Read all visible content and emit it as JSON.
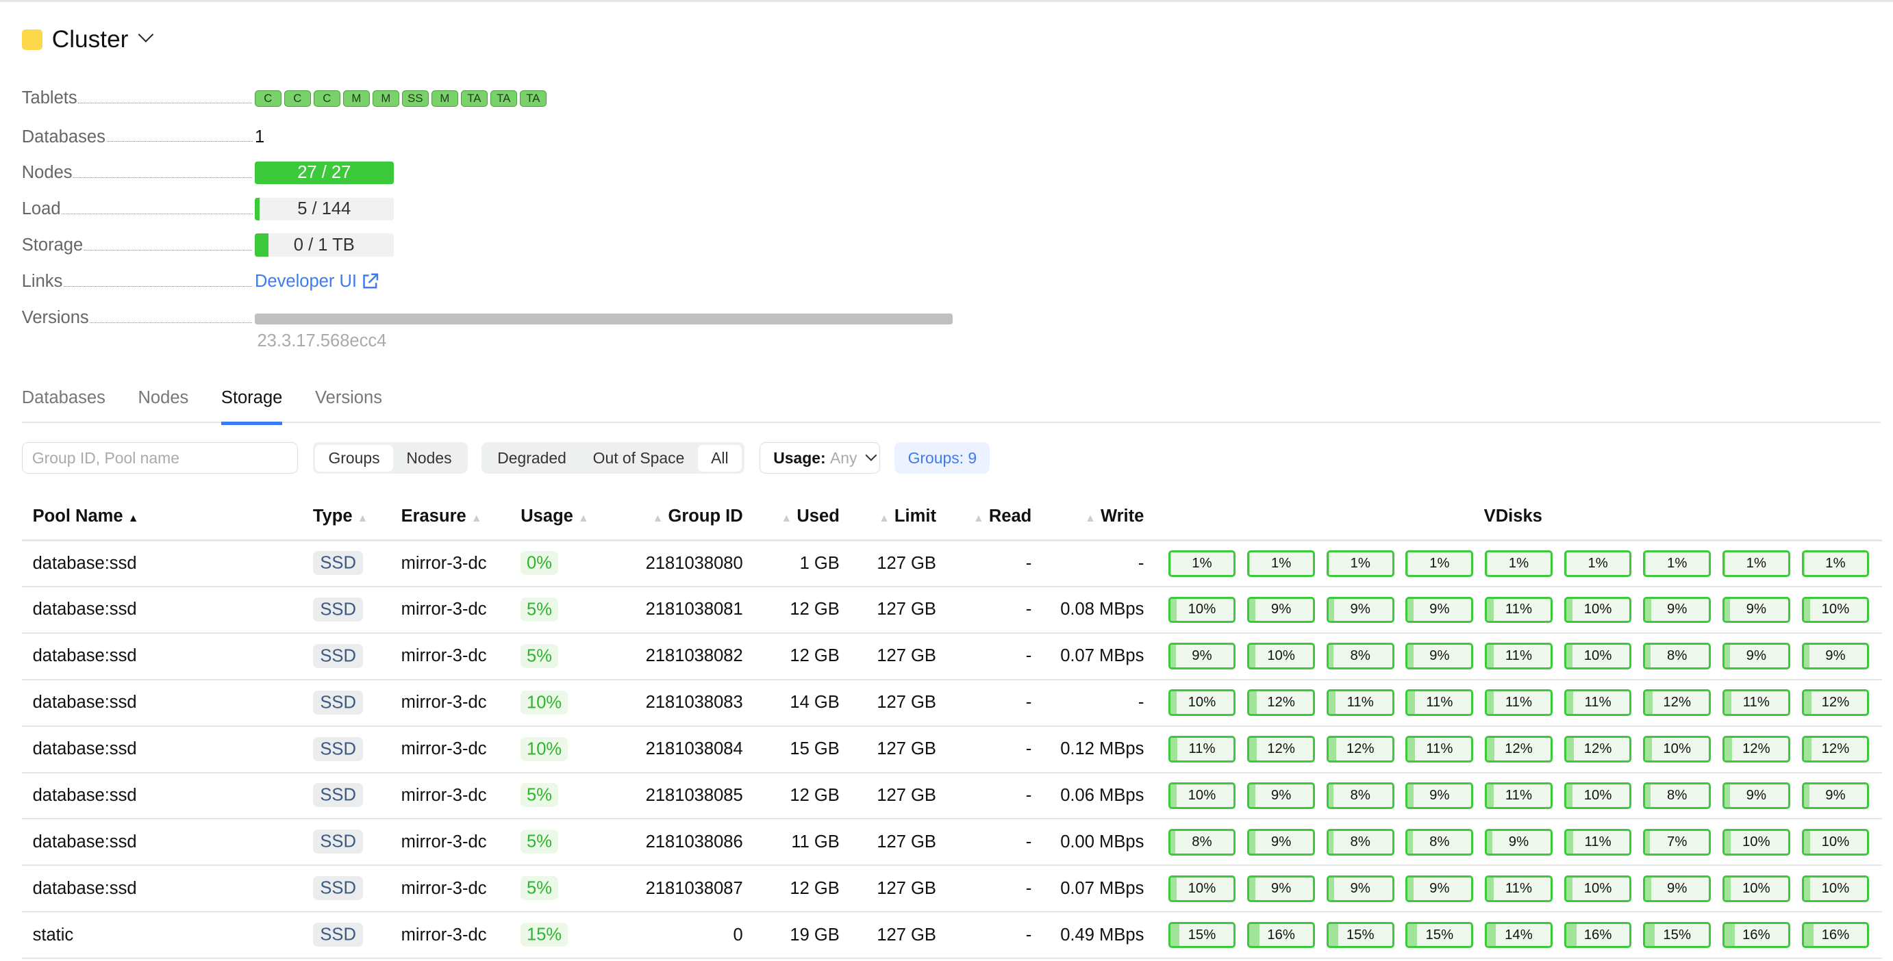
{
  "title": "Cluster",
  "colors": {
    "accent": "#3b7cf4",
    "ok": "#3cc93c",
    "cluster_icon": "#fdd84a"
  },
  "info": {
    "tablets_label": "Tablets",
    "tablets": [
      "C",
      "C",
      "C",
      "M",
      "M",
      "SS",
      "M",
      "TA",
      "TA",
      "TA"
    ],
    "databases_label": "Databases",
    "databases": "1",
    "nodes_label": "Nodes",
    "nodes": "27 / 27",
    "nodes_fraction": 1.0,
    "load_label": "Load",
    "load": "5 / 144",
    "load_fraction": 0.035,
    "storage_label": "Storage",
    "storage": "0 / 1 TB",
    "storage_fraction": 0.1,
    "links_label": "Links",
    "link": "Developer UI",
    "versions_label": "Versions",
    "version": "23.3.17.568ecc4"
  },
  "tabs": [
    "Databases",
    "Nodes",
    "Storage",
    "Versions"
  ],
  "active_tab": "Storage",
  "filters": {
    "search_placeholder": "Group ID, Pool name",
    "view": [
      "Groups",
      "Nodes"
    ],
    "state": [
      "Degraded",
      "Out of Space",
      "All"
    ],
    "usage_label": "Usage:",
    "usage_value": "Any",
    "groups_count": "Groups: 9"
  },
  "columns": [
    "Pool Name",
    "Type",
    "Erasure",
    "Usage",
    "Group ID",
    "Used",
    "Limit",
    "Read",
    "Write",
    "VDisks"
  ],
  "rows": [
    {
      "pool": "database:ssd",
      "type": "SSD",
      "erasure": "mirror-3-dc",
      "usage": "0%",
      "group": "2181038080",
      "used": "1 GB",
      "limit": "127 GB",
      "read": "-",
      "write": "-",
      "vdisks": [
        1,
        1,
        1,
        1,
        1,
        1,
        1,
        1,
        1
      ]
    },
    {
      "pool": "database:ssd",
      "type": "SSD",
      "erasure": "mirror-3-dc",
      "usage": "5%",
      "group": "2181038081",
      "used": "12 GB",
      "limit": "127 GB",
      "read": "-",
      "write": "0.08 MBps",
      "vdisks": [
        10,
        9,
        9,
        9,
        11,
        10,
        9,
        9,
        10
      ]
    },
    {
      "pool": "database:ssd",
      "type": "SSD",
      "erasure": "mirror-3-dc",
      "usage": "5%",
      "group": "2181038082",
      "used": "12 GB",
      "limit": "127 GB",
      "read": "-",
      "write": "0.07 MBps",
      "vdisks": [
        9,
        10,
        8,
        9,
        11,
        10,
        8,
        9,
        9
      ]
    },
    {
      "pool": "database:ssd",
      "type": "SSD",
      "erasure": "mirror-3-dc",
      "usage": "10%",
      "group": "2181038083",
      "used": "14 GB",
      "limit": "127 GB",
      "read": "-",
      "write": "-",
      "vdisks": [
        10,
        12,
        11,
        11,
        11,
        11,
        12,
        11,
        12
      ]
    },
    {
      "pool": "database:ssd",
      "type": "SSD",
      "erasure": "mirror-3-dc",
      "usage": "10%",
      "group": "2181038084",
      "used": "15 GB",
      "limit": "127 GB",
      "read": "-",
      "write": "0.12 MBps",
      "vdisks": [
        11,
        12,
        12,
        11,
        12,
        12,
        10,
        12,
        12
      ]
    },
    {
      "pool": "database:ssd",
      "type": "SSD",
      "erasure": "mirror-3-dc",
      "usage": "5%",
      "group": "2181038085",
      "used": "12 GB",
      "limit": "127 GB",
      "read": "-",
      "write": "0.06 MBps",
      "vdisks": [
        10,
        9,
        8,
        9,
        11,
        10,
        8,
        9,
        9
      ]
    },
    {
      "pool": "database:ssd",
      "type": "SSD",
      "erasure": "mirror-3-dc",
      "usage": "5%",
      "group": "2181038086",
      "used": "11 GB",
      "limit": "127 GB",
      "read": "-",
      "write": "0.00 MBps",
      "vdisks": [
        8,
        9,
        8,
        8,
        9,
        11,
        7,
        10,
        10
      ]
    },
    {
      "pool": "database:ssd",
      "type": "SSD",
      "erasure": "mirror-3-dc",
      "usage": "5%",
      "group": "2181038087",
      "used": "12 GB",
      "limit": "127 GB",
      "read": "-",
      "write": "0.07 MBps",
      "vdisks": [
        10,
        9,
        9,
        9,
        11,
        10,
        9,
        10,
        10
      ]
    },
    {
      "pool": "static",
      "type": "SSD",
      "erasure": "mirror-3-dc",
      "usage": "15%",
      "group": "0",
      "used": "19 GB",
      "limit": "127 GB",
      "read": "-",
      "write": "0.49 MBps",
      "vdisks": [
        15,
        16,
        15,
        15,
        14,
        16,
        15,
        16,
        16
      ]
    }
  ]
}
